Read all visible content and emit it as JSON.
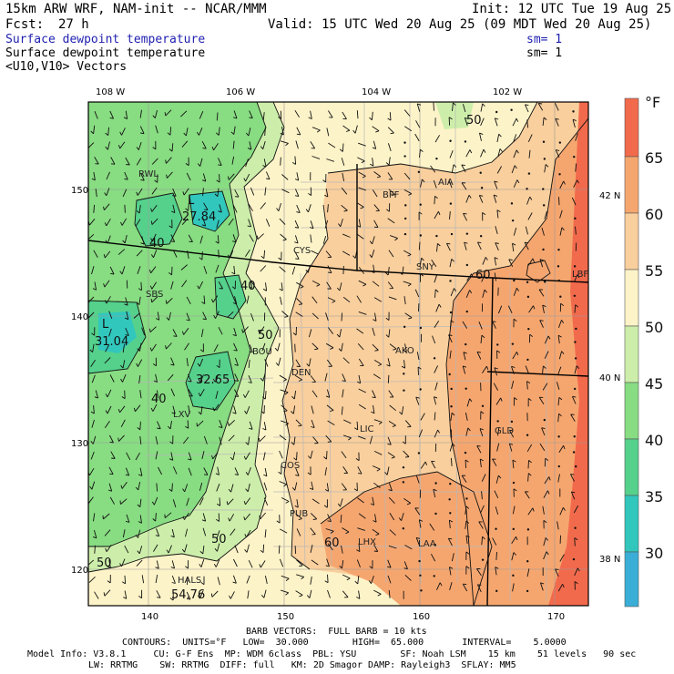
{
  "header": {
    "title_left": "15km ARW WRF, NAM-init -- NCAR/MMM",
    "init": "Init: 12 UTC Tue 19 Aug 25",
    "fcst_label": "Fcst:",
    "fcst_value": "27 h",
    "valid": "Valid: 15 UTC Wed 20 Aug 25 (09 MDT Wed 20 Aug 25)",
    "field1": "Surface dewpoint temperature",
    "field1_sm": "sm= 1",
    "field2": "Surface dewpoint temperature",
    "field2_sm": "sm= 1",
    "field3": "<U10,V10> Vectors"
  },
  "map": {
    "top_lon_labels": [
      "108 W",
      "106 W",
      "104 W",
      "102 W"
    ],
    "right_lat_labels": [
      "42 N",
      "40 N",
      "38 N"
    ],
    "y_grid_labels": [
      "150",
      "140",
      "130",
      "120"
    ],
    "x_grid_labels": [
      "140",
      "150",
      "160",
      "170"
    ],
    "stations": [
      "RWL",
      "BFF",
      "AIA",
      "CYS",
      "SNY",
      "LBF",
      "SBS",
      "BOU",
      "AKO",
      "DEN",
      "LXV",
      "LIC",
      "GLD",
      "COS",
      "PUB",
      "LHX",
      "LAA",
      "HALS"
    ],
    "contour_labels": [
      "50",
      "40",
      "60",
      "40",
      "50",
      "40",
      "60",
      "50",
      "50"
    ],
    "extrema": [
      {
        "type": "L",
        "value": "27.84"
      },
      {
        "type": "L",
        "value": "31.04"
      },
      {
        "value": "32.65"
      },
      {
        "value": "54.76"
      }
    ]
  },
  "colorbar": {
    "unit": "°F",
    "levels": [
      "65",
      "60",
      "55",
      "50",
      "45",
      "40",
      "35",
      "30"
    ],
    "colors": [
      "#f26a4c",
      "#f5a66f",
      "#f9cf9d",
      "#fdf3c8",
      "#cdeeaa",
      "#88dc82",
      "#55d18c",
      "#32c7bd",
      "#3aaed6"
    ]
  },
  "footer": {
    "barb": "BARB VECTORS:  FULL BARB = 10 kts",
    "contours": "CONTOURS:  UNITS=°F   LOW=  30.000        HIGH=  65.000       INTERVAL=    5.0000",
    "model_line1": "Model Info: V3.8.1     CU: G-F Ens  MP: WDM 6class  PBL: YSU        SF: Noah LSM    15 km    51 levels   90 sec",
    "model_line2": "LW: RRTMG    SW: RRTMG  DIFF: full   KM: 2D Smagor DAMP: Rayleigh3  SFLAY: MM5"
  }
}
